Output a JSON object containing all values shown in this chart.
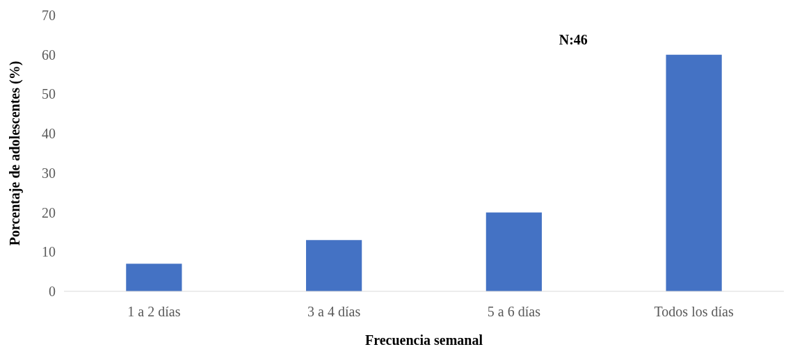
{
  "chart_data": {
    "type": "bar",
    "xlabel": "Frecuencia semanal",
    "ylabel": "Porcentaje de adolescentes (%)",
    "categories": [
      "1 a 2 días",
      "3 a 4 días",
      "5 a 6 días",
      "Todos los días"
    ],
    "values": [
      7,
      13,
      20,
      60
    ],
    "color": "#4472c4",
    "ylim": [
      0,
      70
    ],
    "yticks": [
      0,
      10,
      20,
      30,
      40,
      50,
      60,
      70
    ],
    "grid": false,
    "annotations": [
      "N:46"
    ]
  }
}
